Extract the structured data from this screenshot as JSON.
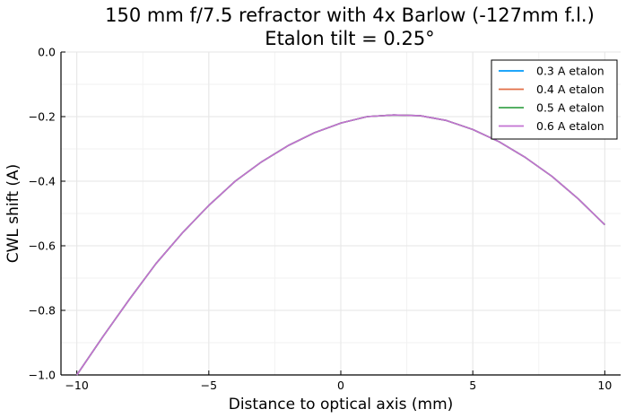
{
  "chart_data": {
    "type": "line",
    "title": "150 mm f/7.5 refractor with 4x Barlow (-127mm f.l.)",
    "subtitle": "Etalon tilt = 0.25°",
    "xlabel": "Distance to optical axis (mm)",
    "ylabel": "CWL shift (A)",
    "xlim": [
      -10.6,
      10.6
    ],
    "ylim": [
      -1.0,
      0.0
    ],
    "xticks": [
      -10,
      -5,
      0,
      5,
      10
    ],
    "xtick_labels": [
      "−10",
      "−5",
      "0",
      "5",
      "10"
    ],
    "yticks": [
      -1.0,
      -0.8,
      -0.6,
      -0.4,
      -0.2,
      0.0
    ],
    "ytick_labels": [
      "−1.0",
      "−0.8",
      "−0.6",
      "−0.4",
      "−0.2",
      "0.0"
    ],
    "grid": true,
    "legend_position": "top-right",
    "x": [
      -10,
      -9,
      -8,
      -7,
      -6,
      -5,
      -4,
      -3,
      -2,
      -1,
      0,
      1,
      2,
      3,
      4,
      5,
      6,
      7,
      8,
      9,
      10
    ],
    "series": [
      {
        "name": "0.3 A etalon",
        "color": "#009AFA",
        "values": [
          -1.0,
          -0.88,
          -0.765,
          -0.655,
          -0.56,
          -0.475,
          -0.4,
          -0.34,
          -0.29,
          -0.25,
          -0.22,
          -0.2,
          -0.195,
          -0.197,
          -0.212,
          -0.24,
          -0.278,
          -0.327,
          -0.385,
          -0.455,
          -0.535
        ]
      },
      {
        "name": "0.4 A etalon",
        "color": "#E36F47",
        "values": [
          -1.0,
          -0.88,
          -0.765,
          -0.655,
          -0.56,
          -0.475,
          -0.4,
          -0.34,
          -0.29,
          -0.25,
          -0.22,
          -0.2,
          -0.195,
          -0.197,
          -0.212,
          -0.24,
          -0.278,
          -0.327,
          -0.385,
          -0.455,
          -0.535
        ]
      },
      {
        "name": "0.5 A etalon",
        "color": "#3EA44E",
        "values": [
          -1.0,
          -0.88,
          -0.765,
          -0.655,
          -0.56,
          -0.475,
          -0.4,
          -0.34,
          -0.29,
          -0.25,
          -0.22,
          -0.2,
          -0.195,
          -0.197,
          -0.212,
          -0.24,
          -0.278,
          -0.327,
          -0.385,
          -0.455,
          -0.535
        ]
      },
      {
        "name": "0.6 A etalon",
        "color": "#C371D2",
        "values": [
          -1.0,
          -0.88,
          -0.765,
          -0.655,
          -0.56,
          -0.475,
          -0.4,
          -0.34,
          -0.29,
          -0.25,
          -0.22,
          -0.2,
          -0.195,
          -0.197,
          -0.212,
          -0.24,
          -0.278,
          -0.327,
          -0.385,
          -0.455,
          -0.535
        ]
      }
    ]
  }
}
